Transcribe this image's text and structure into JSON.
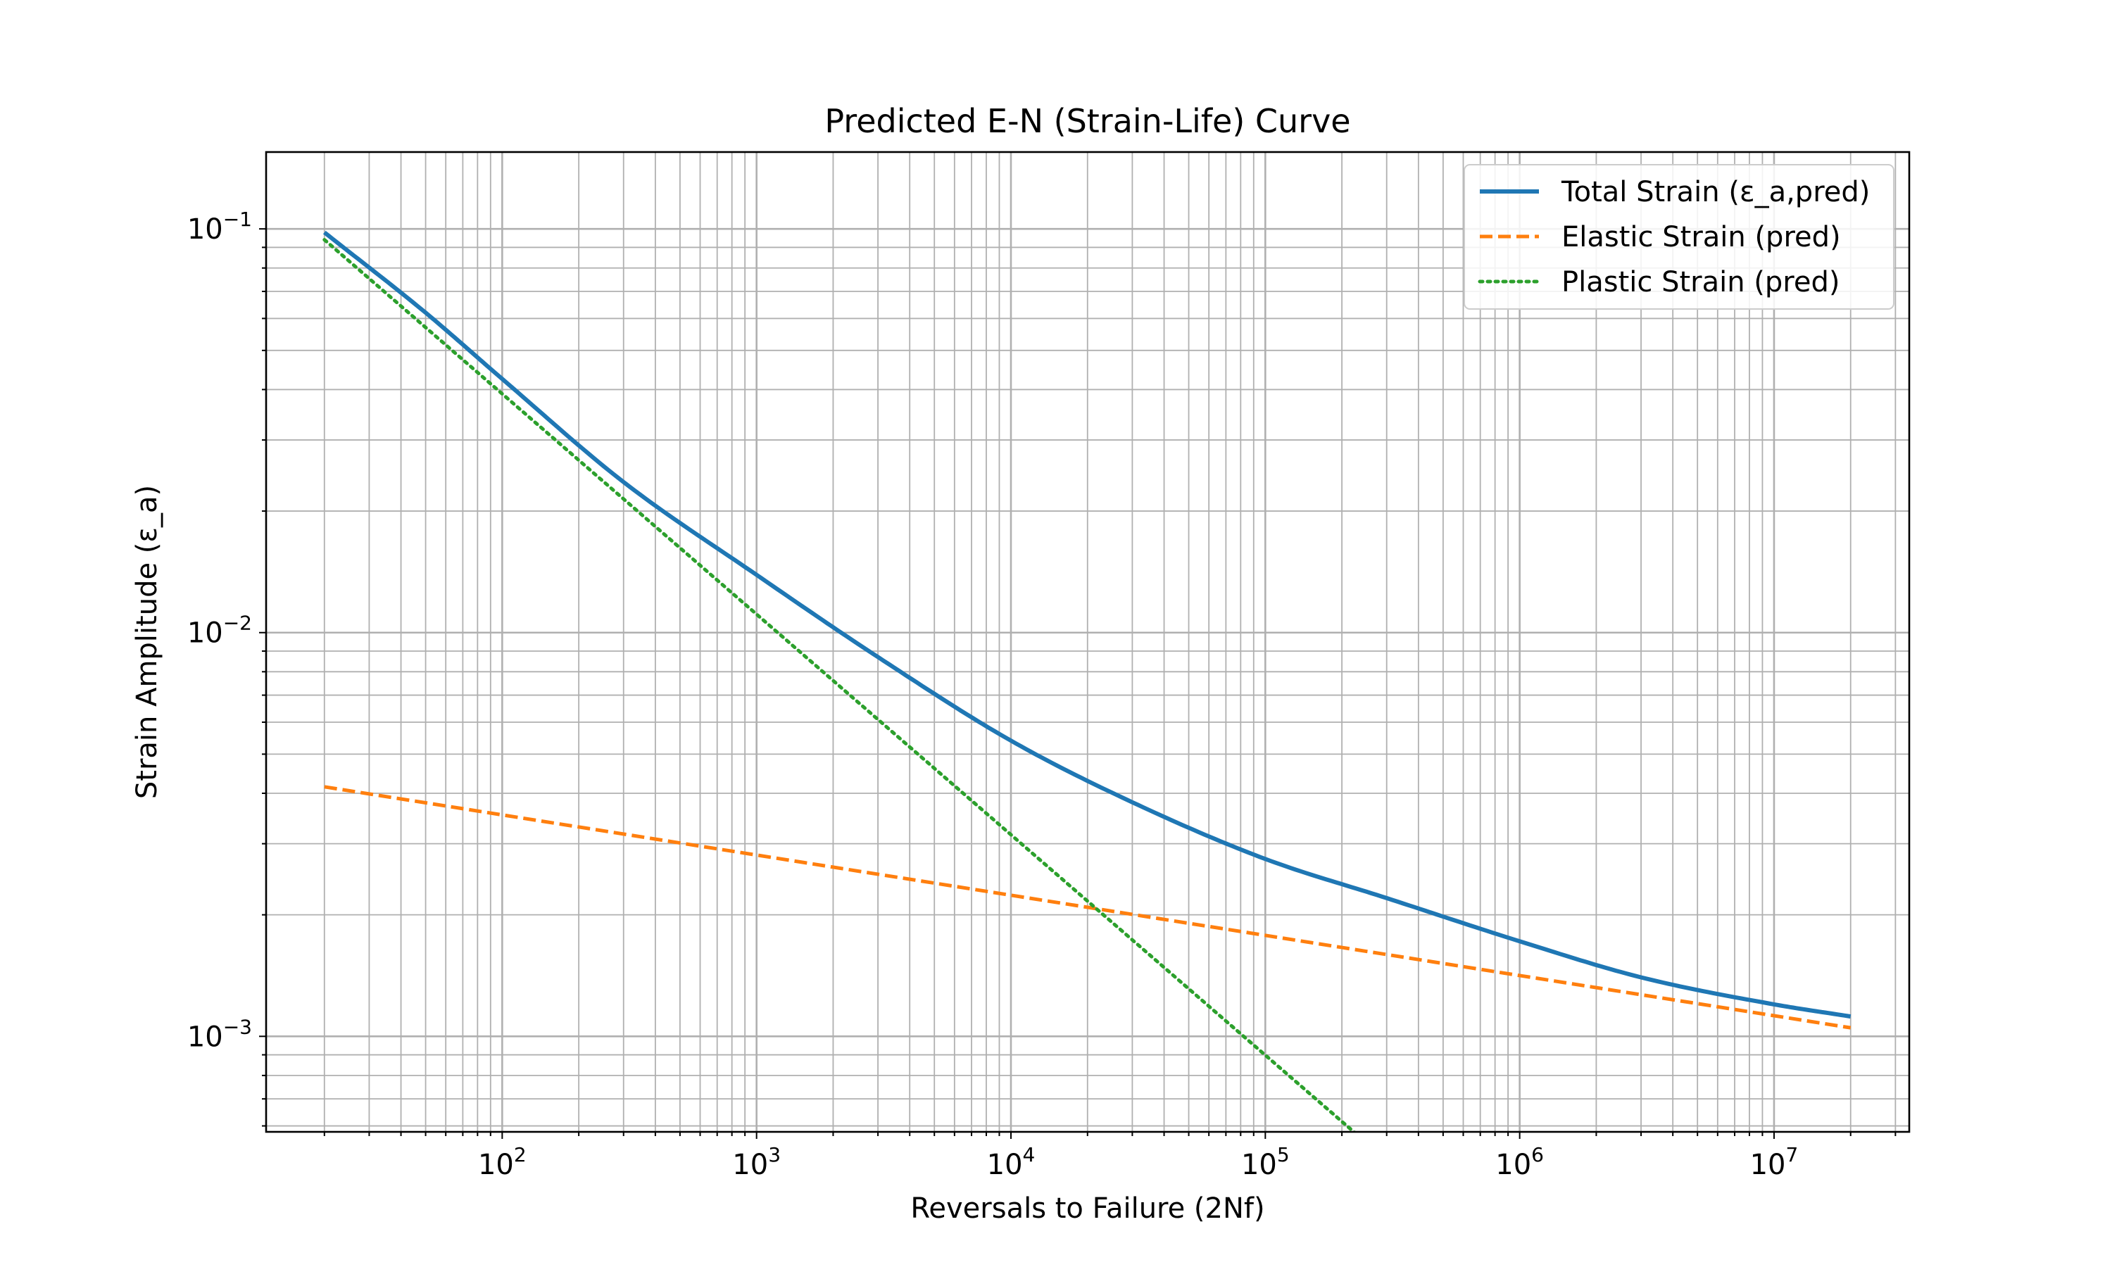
{
  "chart_data": {
    "type": "line",
    "title": "Predicted E-N (Strain-Life) Curve",
    "xlabel": "Reversals to Failure (2Nf)",
    "ylabel": "Strain Amplitude (ε_a)",
    "xscale": "log",
    "yscale": "log",
    "xlim": [
      11.8,
      34000000
    ],
    "ylim": [
      0.00058,
      0.155
    ],
    "x_ticks": [
      {
        "value": 100,
        "base": "10",
        "exp": "2"
      },
      {
        "value": 1000,
        "base": "10",
        "exp": "3"
      },
      {
        "value": 10000,
        "base": "10",
        "exp": "4"
      },
      {
        "value": 100000,
        "base": "10",
        "exp": "5"
      },
      {
        "value": 1000000,
        "base": "10",
        "exp": "6"
      },
      {
        "value": 10000000,
        "base": "10",
        "exp": "7"
      }
    ],
    "y_ticks": [
      {
        "value": 0.1,
        "base": "10",
        "exp": "−1"
      },
      {
        "value": 0.01,
        "base": "10",
        "exp": "−2"
      },
      {
        "value": 0.001,
        "base": "10",
        "exp": "−3"
      }
    ],
    "grid": true,
    "grid_minor": true,
    "legend_position": "top-right",
    "series": [
      {
        "name": "Total Strain (ε_a,pred)",
        "color": "#1f77b4",
        "style": "solid",
        "x": [
          20,
          50,
          100,
          300,
          1000,
          3000,
          10000,
          30000,
          100000,
          300000,
          1000000,
          3000000,
          10000000,
          20000000
        ],
        "y": [
          0.098,
          0.062,
          0.0425,
          0.0236,
          0.0139,
          0.0087,
          0.0054,
          0.0038,
          0.00275,
          0.0022,
          0.00172,
          0.0014,
          0.0012,
          0.00112
        ]
      },
      {
        "name": "Elastic Strain (pred)",
        "color": "#ff7f0e",
        "style": "dashed",
        "x": [
          20,
          20000000
        ],
        "y": [
          0.00415,
          0.00105
        ]
      },
      {
        "name": "Plastic Strain (pred)",
        "color": "#2ca02c",
        "style": "dotted",
        "x": [
          20,
          230000
        ],
        "y": [
          0.094,
          0.00057
        ]
      }
    ]
  }
}
